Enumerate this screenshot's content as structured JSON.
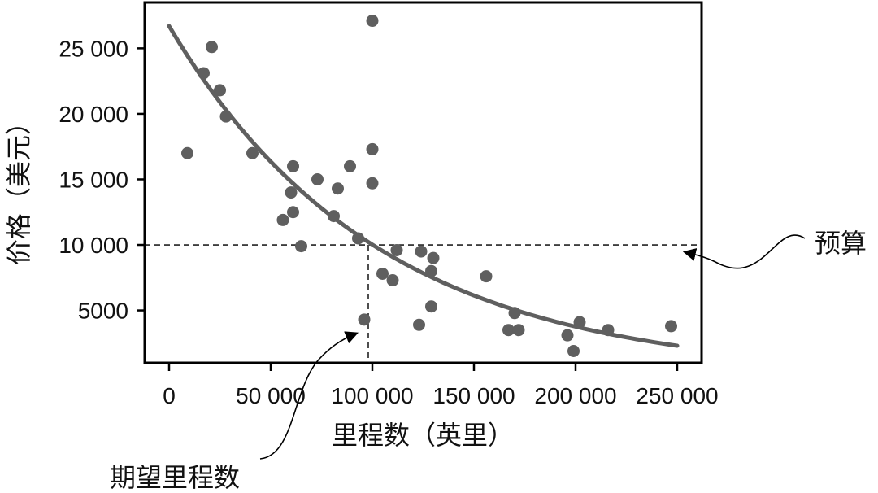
{
  "chart_data": {
    "type": "scatter",
    "xlabel": "里程数（英里）",
    "ylabel": "价格（美元）",
    "xlim": [
      -12000,
      262000
    ],
    "ylim": [
      1000,
      28500
    ],
    "xticks": [
      {
        "value": 0,
        "label": "0"
      },
      {
        "value": 50000,
        "label": "50 000"
      },
      {
        "value": 100000,
        "label": "100 000"
      },
      {
        "value": 150000,
        "label": "150 000"
      },
      {
        "value": 200000,
        "label": "200 000"
      },
      {
        "value": 250000,
        "label": "250 000"
      }
    ],
    "yticks": [
      {
        "value": 5000,
        "label": "5000"
      },
      {
        "value": 10000,
        "label": "10 000"
      },
      {
        "value": 15000,
        "label": "15 000"
      },
      {
        "value": 20000,
        "label": "20 000"
      },
      {
        "value": 25000,
        "label": "25 000"
      }
    ],
    "points": [
      {
        "x": 9000,
        "y": 17000
      },
      {
        "x": 17000,
        "y": 23100
      },
      {
        "x": 21000,
        "y": 25100
      },
      {
        "x": 25000,
        "y": 21800
      },
      {
        "x": 28000,
        "y": 19800
      },
      {
        "x": 41000,
        "y": 17000
      },
      {
        "x": 56000,
        "y": 11900
      },
      {
        "x": 60000,
        "y": 14000
      },
      {
        "x": 61000,
        "y": 16000
      },
      {
        "x": 61000,
        "y": 12500
      },
      {
        "x": 65000,
        "y": 9900
      },
      {
        "x": 73000,
        "y": 15000
      },
      {
        "x": 81000,
        "y": 12200
      },
      {
        "x": 83000,
        "y": 14300
      },
      {
        "x": 89000,
        "y": 16000
      },
      {
        "x": 93000,
        "y": 10500
      },
      {
        "x": 96000,
        "y": 4300
      },
      {
        "x": 100000,
        "y": 27100
      },
      {
        "x": 100000,
        "y": 17300
      },
      {
        "x": 100000,
        "y": 14700
      },
      {
        "x": 105000,
        "y": 7800
      },
      {
        "x": 110000,
        "y": 7300
      },
      {
        "x": 112000,
        "y": 9600
      },
      {
        "x": 123000,
        "y": 3900
      },
      {
        "x": 124000,
        "y": 9500
      },
      {
        "x": 129000,
        "y": 8000
      },
      {
        "x": 129000,
        "y": 5300
      },
      {
        "x": 130000,
        "y": 9000
      },
      {
        "x": 156000,
        "y": 7600
      },
      {
        "x": 167000,
        "y": 3500
      },
      {
        "x": 170000,
        "y": 4800
      },
      {
        "x": 172000,
        "y": 3500
      },
      {
        "x": 196000,
        "y": 3100
      },
      {
        "x": 199000,
        "y": 1900
      },
      {
        "x": 202000,
        "y": 4100
      },
      {
        "x": 216000,
        "y": 3500
      },
      {
        "x": 247000,
        "y": 3800
      }
    ],
    "trend_curve": {
      "kind": "exponential-decay",
      "y_at_x0": 26700,
      "decay_per_mile": 9.8e-06,
      "x_range": [
        0,
        250000
      ]
    },
    "reference_lines": [
      {
        "orientation": "horizontal",
        "value": 10000,
        "style": "dashed"
      },
      {
        "orientation": "vertical",
        "value": 98000,
        "from_y": 10000,
        "style": "dashed"
      }
    ],
    "annotations": [
      {
        "id": "budget",
        "text": "预算"
      },
      {
        "id": "desired-mileage",
        "text": "期望里程数"
      }
    ],
    "grid": false,
    "legend": "none"
  },
  "colors": {
    "marker": "#5f5f5f",
    "curve": "#5f5f5f",
    "frame": "#000000",
    "text": "#111111",
    "dashed": "#222222"
  }
}
